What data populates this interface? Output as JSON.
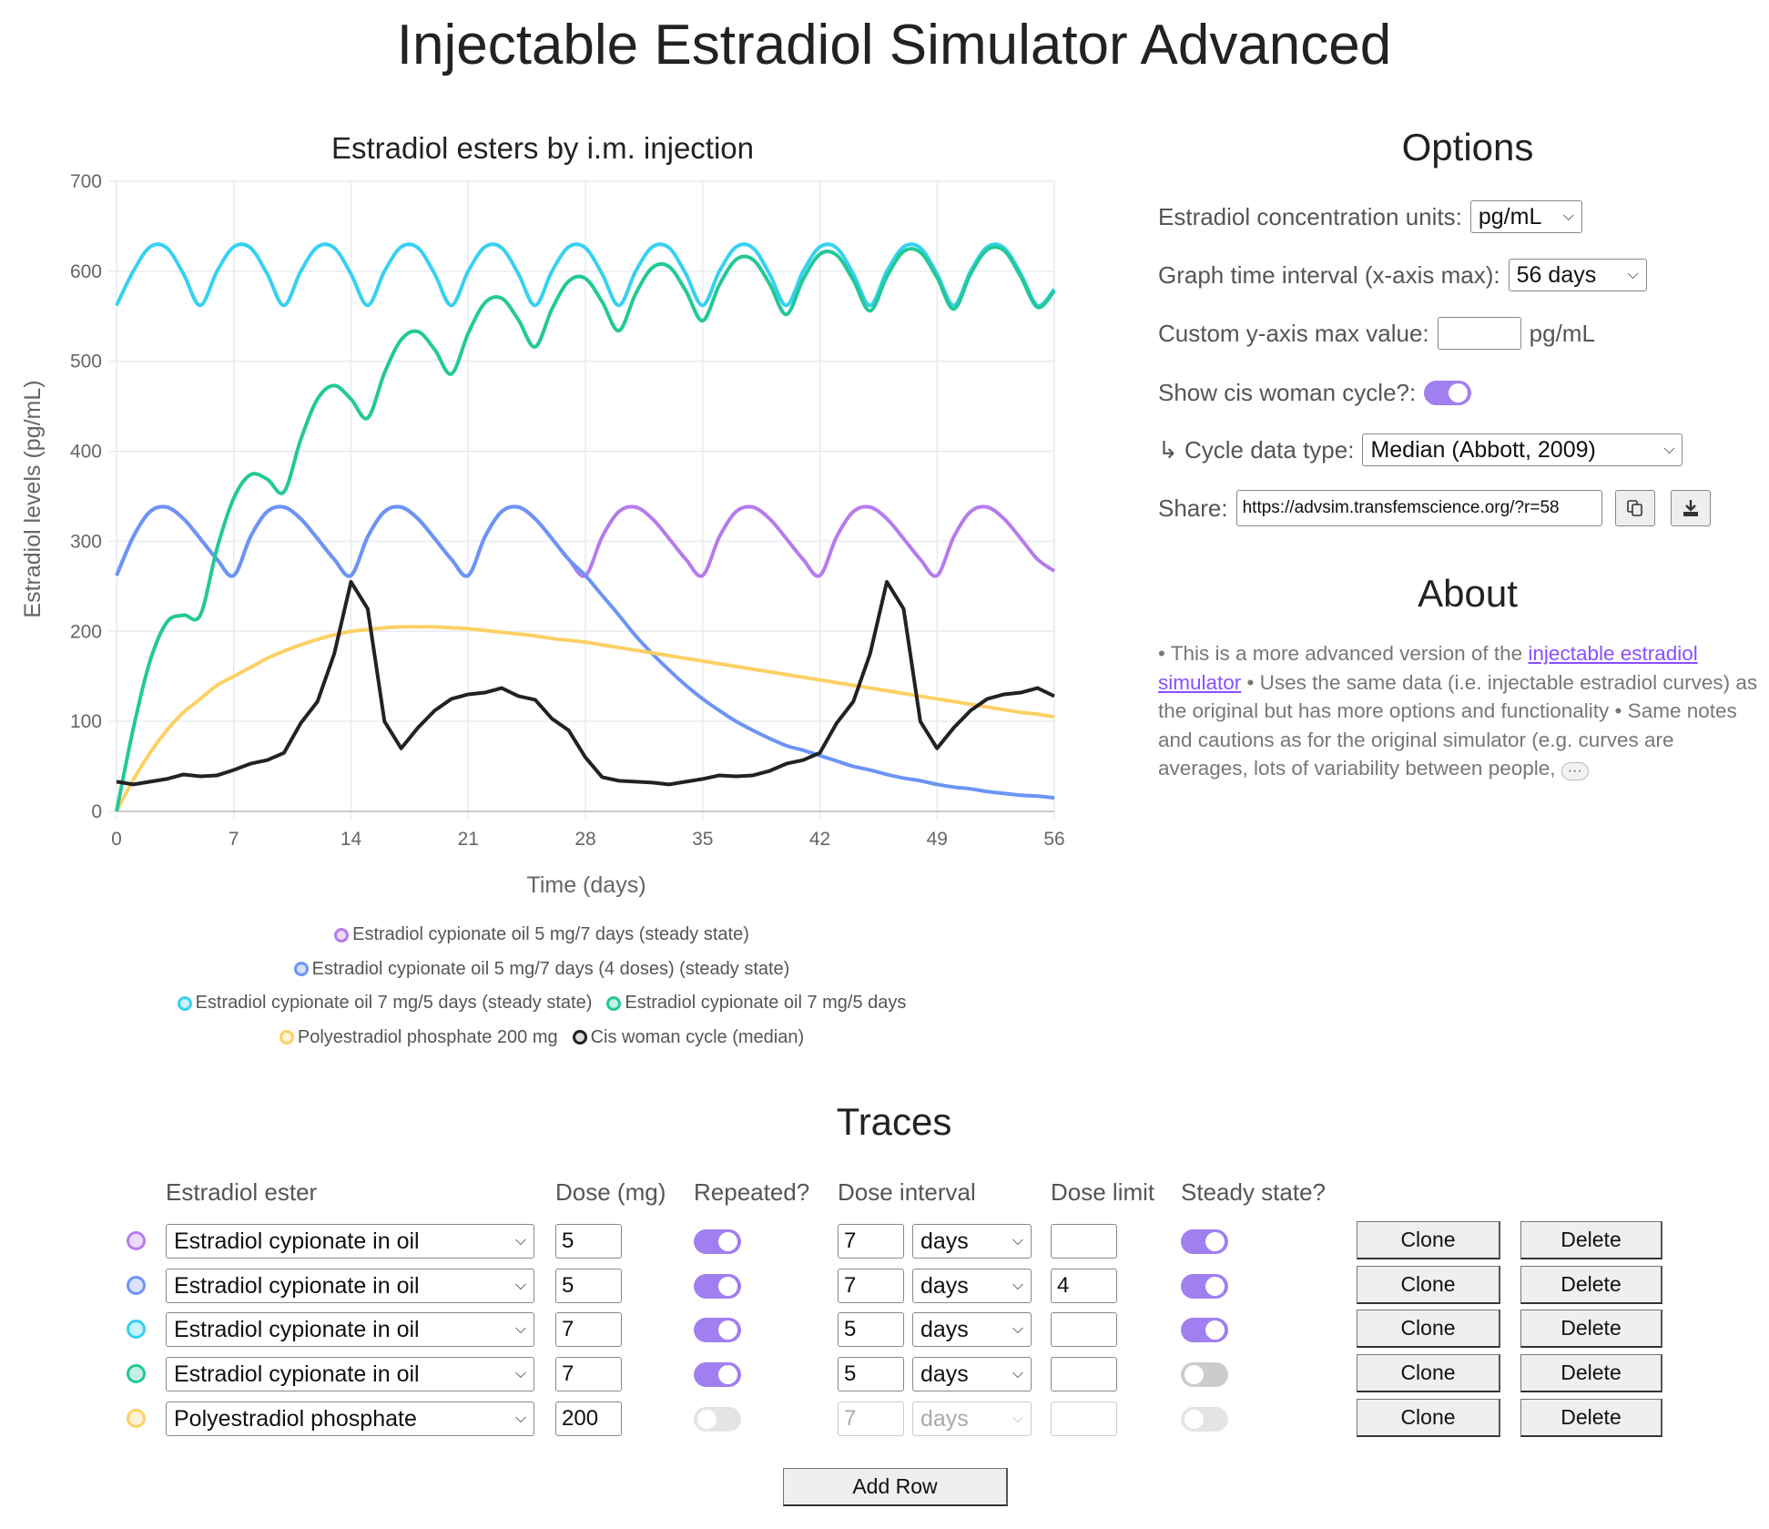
{
  "app_title": "Injectable Estradiol Simulator Advanced",
  "chart_data": {
    "type": "line",
    "title": "Estradiol esters by i.m. injection",
    "xlabel": "Time (days)",
    "ylabel": "Estradiol levels (pg/mL)",
    "xlim": [
      0,
      56
    ],
    "ylim": [
      0,
      700
    ],
    "x_ticks": [
      "0",
      "7",
      "14",
      "21",
      "28",
      "35",
      "42",
      "49",
      "56"
    ],
    "y_ticks": [
      "0",
      "100",
      "200",
      "300",
      "400",
      "500",
      "600",
      "700"
    ],
    "grid": true,
    "legend_placement": "bottom",
    "x": [
      0,
      1,
      2,
      3,
      4,
      5,
      6,
      7,
      8,
      9,
      10,
      11,
      12,
      13,
      14,
      15,
      16,
      17,
      18,
      19,
      20,
      21,
      22,
      23,
      24,
      25,
      26,
      27,
      28,
      29,
      30,
      31,
      32,
      33,
      34,
      35,
      36,
      37,
      38,
      39,
      40,
      41,
      42,
      43,
      44,
      45,
      46,
      47,
      48,
      49,
      50,
      51,
      52,
      53,
      54,
      55,
      56
    ],
    "series": [
      {
        "name": "Estradiol cypionate oil 5 mg/7 days (steady state)",
        "color": "#b57bee",
        "smooth": true,
        "values": [
          262,
          305,
          333,
          338,
          325,
          303,
          280,
          262,
          305,
          333,
          338,
          325,
          303,
          280,
          262,
          305,
          333,
          338,
          325,
          303,
          280,
          262,
          305,
          333,
          338,
          325,
          303,
          280,
          262,
          305,
          333,
          338,
          325,
          303,
          280,
          262,
          305,
          333,
          338,
          325,
          303,
          280,
          262,
          305,
          333,
          338,
          325,
          303,
          280,
          262,
          305,
          333,
          338,
          325,
          303,
          280,
          267
        ]
      },
      {
        "name": "Estradiol cypionate oil 5 mg/7 days (4 doses) (steady state)",
        "color": "#6b94f5",
        "smooth": true,
        "values": [
          262,
          305,
          333,
          338,
          325,
          303,
          280,
          262,
          305,
          333,
          338,
          325,
          303,
          280,
          262,
          305,
          333,
          338,
          325,
          303,
          280,
          262,
          305,
          333,
          338,
          325,
          303,
          280,
          262,
          240,
          218,
          195,
          175,
          157,
          140,
          125,
          112,
          100,
          90,
          81,
          73,
          68,
          62,
          56,
          50,
          46,
          41,
          37,
          34,
          30,
          27,
          25,
          22,
          20,
          18,
          17,
          15
        ]
      },
      {
        "name": "Estradiol cypionate oil 7 mg/5 days (steady state)",
        "color": "#36d1f2",
        "smooth": true,
        "values": [
          562,
          600,
          627,
          626,
          597,
          562,
          600,
          627,
          626,
          597,
          562,
          600,
          627,
          626,
          597,
          562,
          600,
          627,
          626,
          597,
          562,
          600,
          627,
          626,
          597,
          562,
          600,
          627,
          626,
          597,
          562,
          600,
          627,
          626,
          597,
          562,
          600,
          627,
          626,
          597,
          562,
          600,
          627,
          626,
          597,
          562,
          600,
          627,
          626,
          597,
          562,
          600,
          627,
          626,
          597,
          562,
          580
        ]
      },
      {
        "name": "Estradiol cypionate oil 7 mg/5 days",
        "color": "#22c997",
        "smooth": true,
        "values": [
          0,
          92,
          167,
          210,
          218,
          218,
          292,
          348,
          374,
          369,
          355,
          413,
          458,
          473,
          458,
          437,
          487,
          524,
          533,
          513,
          486,
          531,
          565,
          570,
          546,
          516,
          558,
          589,
          592,
          566,
          534,
          575,
          604,
          605,
          578,
          545,
          585,
          613,
          613,
          586,
          552,
          591,
          619,
          618,
          590,
          556,
          594,
          622,
          621,
          593,
          558,
          597,
          624,
          623,
          594,
          560,
          578
        ]
      },
      {
        "name": "Polyestradiol phosphate 200 mg",
        "color": "#fdd065",
        "smooth": true,
        "values": [
          0,
          35,
          65,
          90,
          110,
          125,
          140,
          150,
          160,
          170,
          178,
          185,
          191,
          196,
          200,
          202,
          204,
          205,
          205,
          205,
          204,
          203,
          201,
          199,
          197,
          195,
          192,
          190,
          188,
          185,
          182,
          179,
          176,
          173,
          170,
          167,
          164,
          161,
          158,
          155,
          152,
          149,
          146,
          143,
          140,
          137,
          134,
          131,
          128,
          125,
          122,
          119,
          116,
          113,
          110,
          108,
          105
        ]
      },
      {
        "name": "Cis woman cycle (median)",
        "color": "#222222",
        "smooth": false,
        "values": [
          33,
          30,
          33,
          36,
          41,
          39,
          40,
          46,
          53,
          57,
          65,
          98,
          122,
          175,
          255,
          225,
          100,
          70,
          93,
          112,
          125,
          130,
          132,
          137,
          128,
          124,
          103,
          90,
          60,
          38,
          34,
          33,
          32,
          30,
          33,
          36,
          40,
          39,
          40,
          45,
          53,
          57,
          65,
          98,
          122,
          175,
          255,
          225,
          100,
          70,
          93,
          112,
          125,
          130,
          132,
          137,
          128
        ]
      }
    ]
  },
  "options": {
    "title": "Options",
    "units_label": "Estradiol concentration units:",
    "units_value": "pg/mL",
    "interval_label": "Graph time interval (x-axis max):",
    "interval_value": "56 days",
    "ymax_label": "Custom y-axis max value:",
    "ymax_value": "",
    "ymax_unit": "pg/mL",
    "cycle_label": "Show cis woman cycle?:",
    "cycle_on": true,
    "cycle_type_label": "↳ Cycle data type:",
    "cycle_type_value": "Median (Abbott, 2009)",
    "share_label": "Share:",
    "share_url": "https://advsim.transfemscience.org/?r=58",
    "copy_icon": "copy-icon",
    "download_icon": "download-icon"
  },
  "about": {
    "title": "About",
    "text_1": "• This is a more advanced version of the ",
    "link": "injectable estradiol simulator",
    "text_2": " • Uses the same data (i.e. injectable estradiol curves) as the original but has more options and functionality • Same notes and cautions as for the original simulator (e.g. curves are averages, lots of variability between people, ",
    "more": "···"
  },
  "traces": {
    "title": "Traces",
    "headers": {
      "ester": "Estradiol ester",
      "dose": "Dose (mg)",
      "repeated": "Repeated?",
      "interval": "Dose interval",
      "limit": "Dose limit",
      "steady": "Steady state?"
    },
    "clone_label": "Clone",
    "delete_label": "Delete",
    "add_row_label": "Add Row",
    "rows": [
      {
        "color": "#b57bee",
        "ester": "Estradiol cypionate in oil",
        "dose": "5",
        "repeated": true,
        "interval": "7",
        "unit": "days",
        "limit": "",
        "steady": true,
        "disabled": false
      },
      {
        "color": "#6b94f5",
        "ester": "Estradiol cypionate in oil",
        "dose": "5",
        "repeated": true,
        "interval": "7",
        "unit": "days",
        "limit": "4",
        "steady": true,
        "disabled": false
      },
      {
        "color": "#36d1f2",
        "ester": "Estradiol cypionate in oil",
        "dose": "7",
        "repeated": true,
        "interval": "5",
        "unit": "days",
        "limit": "",
        "steady": true,
        "disabled": false
      },
      {
        "color": "#22c997",
        "ester": "Estradiol cypionate in oil",
        "dose": "7",
        "repeated": true,
        "interval": "5",
        "unit": "days",
        "limit": "",
        "steady": false,
        "disabled": false
      },
      {
        "color": "#fdd065",
        "ester": "Polyestradiol phosphate",
        "dose": "200",
        "repeated": false,
        "interval": "7",
        "unit": "days",
        "limit": "",
        "steady": false,
        "disabled": true
      }
    ]
  }
}
